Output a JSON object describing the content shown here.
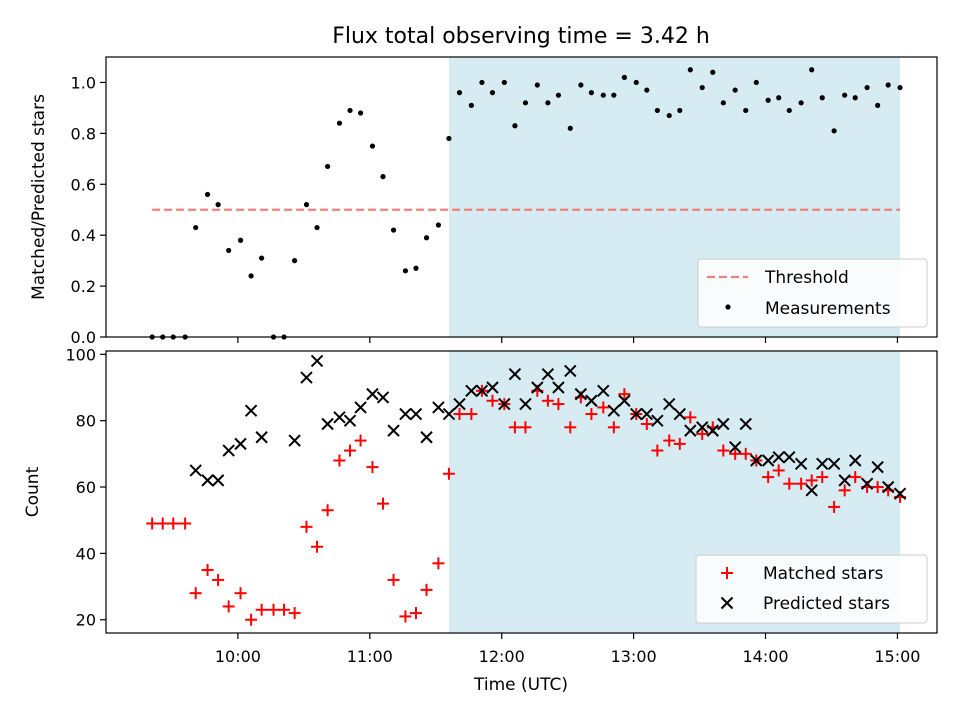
{
  "chart_data": {
    "title": "Flux total observing time = 3.42 h",
    "xlabel": "Time (UTC)",
    "x_unit": "hours UTC",
    "x_ticks": [
      {
        "value": 10,
        "label": "10:00"
      },
      {
        "value": 11,
        "label": "11:00"
      },
      {
        "value": 12,
        "label": "12:00"
      },
      {
        "value": 13,
        "label": "13:00"
      },
      {
        "value": 14,
        "label": "14:00"
      },
      {
        "value": 15,
        "label": "15:00"
      }
    ],
    "xlim": [
      9.0,
      15.3
    ],
    "shaded_span": {
      "x_start": 11.6,
      "x_end": 15.02,
      "color": "#add8e6"
    },
    "top_panel": {
      "type": "scatter",
      "ylabel": "Matched/Predicted stars",
      "ylim": [
        0.0,
        1.1
      ],
      "yticks": [
        "0.0",
        "0.2",
        "0.4",
        "0.6",
        "0.8",
        "1.0"
      ],
      "legend_position": "lower right",
      "threshold": {
        "name": "Threshold",
        "y": 0.5,
        "x_start": 9.35,
        "x_end": 15.02,
        "color": "#f08080",
        "style": "dashed"
      },
      "series": [
        {
          "name": "Measurements",
          "color": "#000000",
          "marker": "dot",
          "x": [
            9.35,
            9.43,
            9.51,
            9.6,
            9.68,
            9.77,
            9.85,
            9.93,
            10.02,
            10.1,
            10.18,
            10.27,
            10.35,
            10.43,
            10.52,
            10.6,
            10.68,
            10.77,
            10.85,
            10.93,
            11.02,
            11.1,
            11.18,
            11.27,
            11.35,
            11.43,
            11.52,
            11.6,
            11.68,
            11.77,
            11.85,
            11.93,
            12.02,
            12.1,
            12.18,
            12.27,
            12.35,
            12.43,
            12.52,
            12.6,
            12.68,
            12.77,
            12.85,
            12.93,
            13.02,
            13.1,
            13.18,
            13.27,
            13.35,
            13.43,
            13.52,
            13.6,
            13.68,
            13.77,
            13.85,
            13.93,
            14.02,
            14.1,
            14.18,
            14.27,
            14.35,
            14.43,
            14.52,
            14.6,
            14.68,
            14.77,
            14.85,
            14.93,
            15.02
          ],
          "y": [
            0.0,
            0.0,
            0.0,
            0.0,
            0.43,
            0.56,
            0.52,
            0.34,
            0.38,
            0.24,
            0.31,
            0.0,
            0.0,
            0.3,
            0.52,
            0.43,
            0.67,
            0.84,
            0.89,
            0.88,
            0.75,
            0.63,
            0.42,
            0.26,
            0.27,
            0.39,
            0.44,
            0.78,
            0.96,
            0.91,
            1.0,
            0.96,
            1.0,
            0.83,
            0.92,
            0.99,
            0.92,
            0.95,
            0.82,
            0.99,
            0.96,
            0.95,
            0.95,
            1.02,
            1.0,
            0.97,
            0.89,
            0.87,
            0.89,
            1.05,
            0.98,
            1.04,
            0.92,
            0.97,
            0.89,
            1.0,
            0.93,
            0.94,
            0.89,
            0.92,
            1.05,
            0.94,
            0.81,
            0.95,
            0.94,
            0.98,
            0.91,
            0.99,
            0.98
          ]
        }
      ]
    },
    "bottom_panel": {
      "type": "scatter",
      "ylabel": "Count",
      "ylim": [
        16,
        101
      ],
      "yticks": [
        "20",
        "40",
        "60",
        "80",
        "100"
      ],
      "legend_position": "lower right",
      "series": [
        {
          "name": "Matched stars",
          "color": "#ff0000",
          "marker": "plus",
          "x": [
            9.35,
            9.43,
            9.51,
            9.6,
            9.68,
            9.77,
            9.85,
            9.93,
            10.02,
            10.1,
            10.18,
            10.27,
            10.35,
            10.43,
            10.52,
            10.6,
            10.68,
            10.77,
            10.85,
            10.93,
            11.02,
            11.1,
            11.18,
            11.27,
            11.35,
            11.43,
            11.52,
            11.6,
            11.68,
            11.77,
            11.85,
            11.93,
            12.02,
            12.1,
            12.18,
            12.27,
            12.35,
            12.43,
            12.52,
            12.6,
            12.68,
            12.77,
            12.85,
            12.93,
            13.02,
            13.1,
            13.18,
            13.27,
            13.35,
            13.43,
            13.52,
            13.6,
            13.68,
            13.77,
            13.85,
            13.93,
            14.02,
            14.1,
            14.18,
            14.27,
            14.35,
            14.43,
            14.52,
            14.6,
            14.68,
            14.77,
            14.85,
            14.93,
            15.02
          ],
          "y": [
            49,
            49,
            49,
            49,
            28,
            35,
            32,
            24,
            28,
            20,
            23,
            23,
            23,
            22,
            48,
            42,
            53,
            68,
            71,
            74,
            66,
            55,
            32,
            21,
            22,
            29,
            37,
            64,
            82,
            82,
            89,
            86,
            85,
            78,
            78,
            89,
            86,
            85,
            78,
            87,
            82,
            84,
            78,
            88,
            82,
            79,
            71,
            74,
            73,
            81,
            76,
            78,
            71,
            70,
            70,
            68,
            63,
            65,
            61,
            61,
            62,
            63,
            54,
            59,
            63,
            60,
            60,
            59,
            57
          ]
        },
        {
          "name": "Predicted stars",
          "color": "#000000",
          "marker": "x",
          "x": [
            9.68,
            9.77,
            9.85,
            9.93,
            10.02,
            10.1,
            10.18,
            10.43,
            10.52,
            10.6,
            10.68,
            10.77,
            10.85,
            10.93,
            11.02,
            11.1,
            11.18,
            11.27,
            11.35,
            11.43,
            11.52,
            11.6,
            11.68,
            11.77,
            11.85,
            11.93,
            12.02,
            12.1,
            12.18,
            12.27,
            12.35,
            12.43,
            12.52,
            12.6,
            12.68,
            12.77,
            12.85,
            12.93,
            13.02,
            13.1,
            13.18,
            13.27,
            13.35,
            13.43,
            13.52,
            13.6,
            13.68,
            13.77,
            13.85,
            13.93,
            14.02,
            14.1,
            14.18,
            14.27,
            14.35,
            14.43,
            14.52,
            14.6,
            14.68,
            14.77,
            14.85,
            14.93,
            15.02
          ],
          "y": [
            65,
            62,
            62,
            71,
            73,
            83,
            75,
            74,
            93,
            98,
            79,
            81,
            80,
            84,
            88,
            87,
            77,
            82,
            82,
            75,
            84,
            82,
            85,
            89,
            89,
            90,
            85,
            94,
            85,
            90,
            94,
            90,
            95,
            88,
            86,
            89,
            83,
            86,
            82,
            82,
            80,
            85,
            82,
            77,
            78,
            77,
            79,
            72,
            79,
            68,
            68,
            69,
            69,
            67,
            59,
            67,
            67,
            62,
            68,
            61,
            66,
            60,
            58
          ]
        }
      ]
    }
  }
}
